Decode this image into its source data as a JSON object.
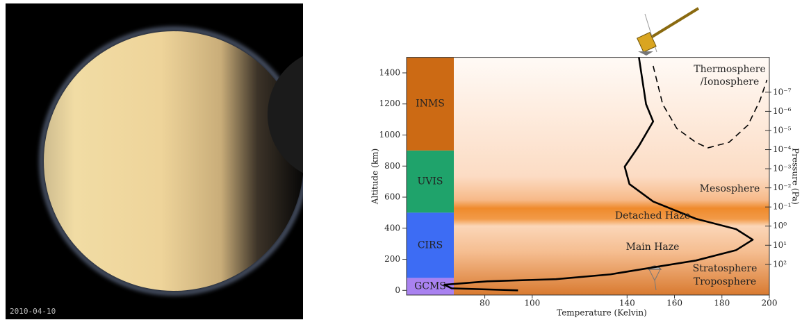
{
  "photo": {
    "date": "2010-04-10"
  },
  "chart_data": {
    "type": "line",
    "xlabel": "Temperature (Kelvin)",
    "ylabel": "Altitude (km)",
    "y2label": "Pressure (Pa)",
    "xlim": [
      47,
      200
    ],
    "xticks": [
      80,
      100,
      140,
      160,
      180,
      200
    ],
    "ylim": [
      -30,
      1500
    ],
    "yticks": [
      0,
      200,
      400,
      600,
      800,
      1000,
      1200,
      1400
    ],
    "y2lim": [
      4000,
      1.5e-09
    ],
    "y2scale": "log",
    "y2ticks": [
      {
        "value": 1e-07,
        "label": "10⁻⁷"
      },
      {
        "value": 1e-06,
        "label": "10⁻⁶"
      },
      {
        "value": 1e-05,
        "label": "10⁻⁵"
      },
      {
        "value": 0.0001,
        "label": "10⁻⁴"
      },
      {
        "value": 0.001,
        "label": "10⁻³"
      },
      {
        "value": 0.01,
        "label": "10⁻²"
      },
      {
        "value": 0.1,
        "label": "10⁻¹"
      },
      {
        "value": 1,
        "label": "10⁰"
      },
      {
        "value": 10,
        "label": "10¹"
      },
      {
        "value": 100,
        "label": "10²"
      }
    ],
    "series": [
      {
        "color": "#000000",
        "style": "solid",
        "x": [
          145,
          148,
          151,
          145,
          139,
          141,
          151,
          169,
          186,
          193,
          186,
          169,
          151,
          133,
          110,
          81,
          63,
          66,
          94
        ],
        "values": [
          1500,
          1199,
          1087,
          930,
          796,
          684,
          572,
          461,
          394,
          326,
          259,
          192,
          148,
          103,
          72,
          58,
          36,
          13,
          0
        ]
      },
      {
        "color": "#000000",
        "style": "dashed",
        "x": [
          151,
          155,
          161,
          169,
          174,
          183,
          191,
          196,
          199
        ],
        "values": [
          1445,
          1199,
          1042,
          953,
          917,
          953,
          1064,
          1221,
          1355
        ]
      }
    ],
    "bands": [
      {
        "label": "INMS",
        "from": 900,
        "to": 1500,
        "color": "#cc6a14"
      },
      {
        "label": "UVIS",
        "from": 500,
        "to": 900,
        "color": "#1fa36b"
      },
      {
        "label": "CIRS",
        "from": 80,
        "to": 500,
        "color": "#3d6cf4"
      },
      {
        "label": "GCMS",
        "from": -30,
        "to": 80,
        "color": "#a982f0"
      }
    ],
    "annotations": [
      "Thermosphere",
      "/Ionosphere",
      "Mesosphere",
      "Detached Haze",
      "Main Haze",
      "Stratosphere",
      "Troposphere"
    ]
  }
}
